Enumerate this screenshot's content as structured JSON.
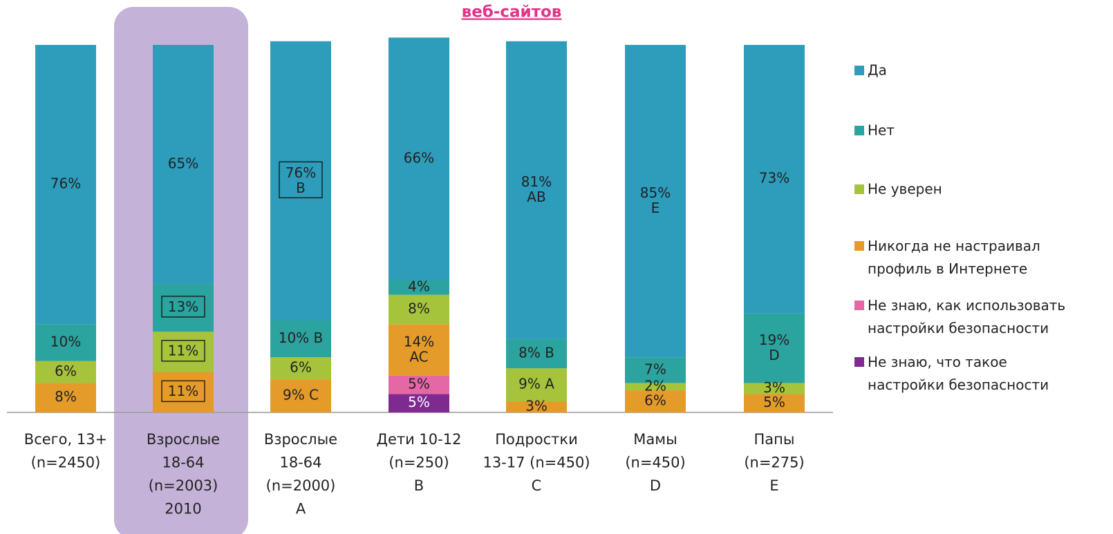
{
  "chart_data": {
    "type": "stacked_bar",
    "title": "веб-сайтов",
    "categories": [
      [
        "Всего, 13+",
        "(n=2450)"
      ],
      [
        "Взрослые",
        "18-64",
        "(n=2003)",
        "2010"
      ],
      [
        "Взрослые",
        "18-64",
        "(n=2000)",
        "A"
      ],
      [
        "Дети 10-12",
        "(n=250)",
        "B"
      ],
      [
        "Подростки",
        "13-17 (n=450)",
        "C"
      ],
      [
        "Мамы",
        "(n=450)",
        "D"
      ],
      [
        "Папы",
        "(n=275)",
        "E"
      ]
    ],
    "series": [
      {
        "name": "Да",
        "color": "#2e9cbb",
        "values": [
          76,
          65,
          76,
          66,
          81,
          85,
          73
        ],
        "value_labels": [
          "76%",
          "65%",
          "76%\nB",
          "66%",
          "81%\nAB",
          "85%\nE",
          "73%"
        ]
      },
      {
        "name": "Нет",
        "color": "#2ba39f",
        "values": [
          10,
          13,
          10,
          4,
          8,
          7,
          19
        ],
        "value_labels": [
          "10%",
          "13%",
          "10% B",
          "4%",
          "8% B",
          "7%",
          "19%\nD"
        ]
      },
      {
        "name": "Не уверен",
        "color": "#a5c33b",
        "values": [
          6,
          11,
          6,
          8,
          9,
          2,
          3
        ],
        "value_labels": [
          "6%",
          "11%",
          "6%",
          "8%",
          "9%  A",
          "2%",
          "3%"
        ]
      },
      {
        "name": "Никогда не настраивал\nпрофиль в Интернете",
        "color": "#e49b2a",
        "values": [
          8,
          11,
          9,
          14,
          3,
          6,
          5
        ],
        "value_labels": [
          "8%",
          "11%",
          "9% C",
          "14%\nAC",
          "3%",
          "6%",
          "5%"
        ]
      },
      {
        "name": "Не знаю, как использовать\nнастройки безопасности",
        "color": "#e467a6",
        "values": [
          null,
          null,
          null,
          5,
          null,
          null,
          null
        ],
        "value_labels": [
          null,
          null,
          null,
          "5%",
          null,
          null,
          null
        ]
      },
      {
        "name": "Не знаю, что такое\nнастройки безопасности",
        "color": "#7e2a91",
        "values": [
          null,
          null,
          null,
          5,
          null,
          null,
          null
        ],
        "value_labels": [
          null,
          null,
          null,
          "5%",
          null,
          null,
          null
        ]
      }
    ]
  }
}
